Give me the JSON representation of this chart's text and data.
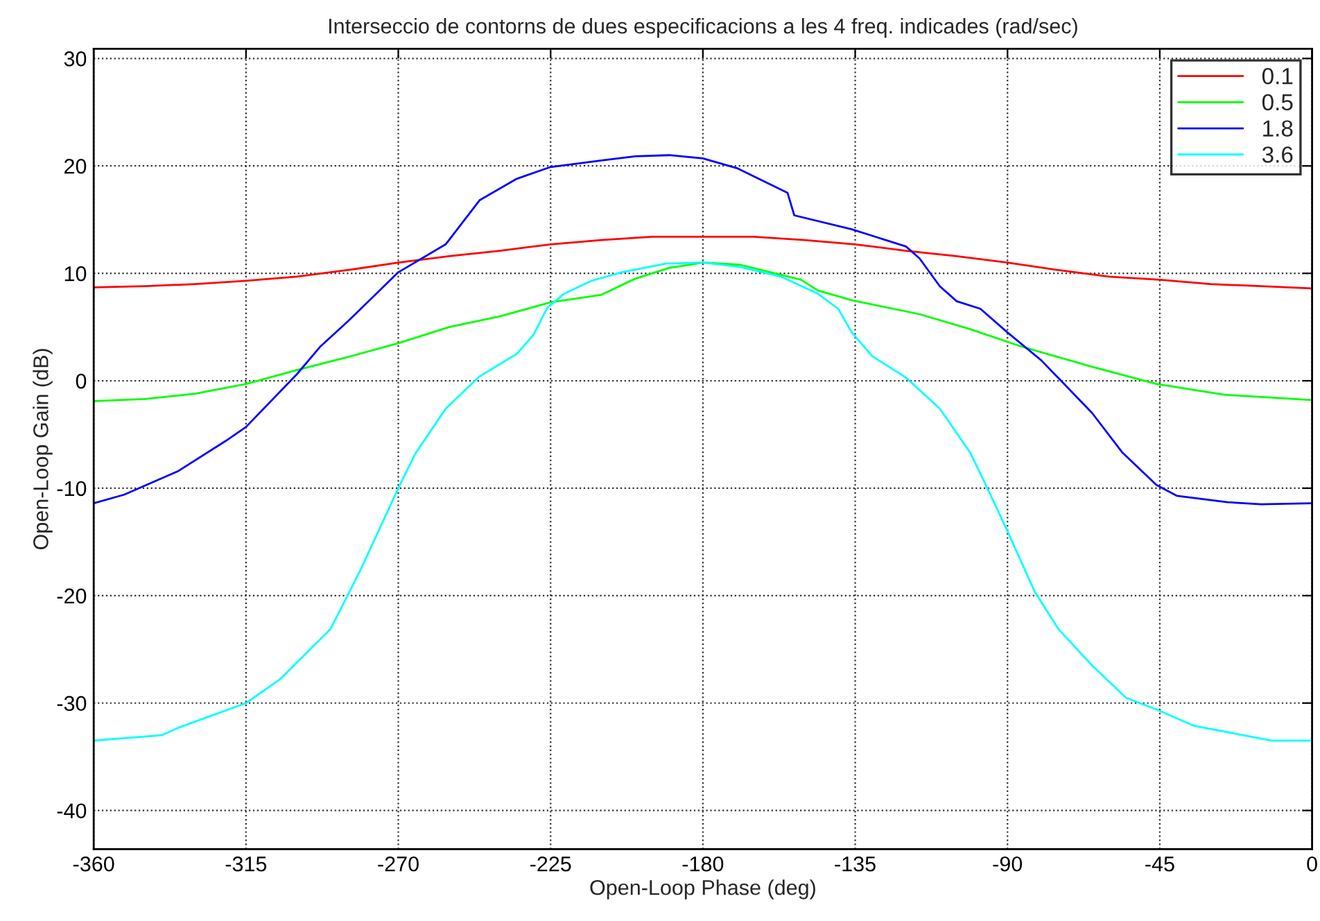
{
  "chart_data": {
    "type": "line",
    "title": "Interseccio de contorns de dues especificacions a les 4 freq. indicades (rad/sec)",
    "xlabel": "Open-Loop Phase (deg)",
    "ylabel": "Open-Loop Gain (dB)",
    "xlim": [
      -360,
      0
    ],
    "ylim": [
      -43.6,
      30.9
    ],
    "xticks": [
      -360,
      -315,
      -270,
      -225,
      -180,
      -135,
      -90,
      -45,
      0
    ],
    "yticks": [
      -40,
      -30,
      -20,
      -10,
      0,
      10,
      20,
      30
    ],
    "grid": true,
    "legend": "top right",
    "marker": "none",
    "line_style": "solid",
    "series": [
      {
        "name": "0.1",
        "color": "#ff0000",
        "x": [
          -360,
          -345,
          -330,
          -315,
          -300,
          -285,
          -270,
          -255,
          -240,
          -225,
          -210,
          -195,
          -180,
          -165,
          -150,
          -135,
          -120,
          -105,
          -90,
          -75,
          -60,
          -45,
          -30,
          -15,
          0
        ],
        "values": [
          8.7,
          8.8,
          9.0,
          9.3,
          9.7,
          10.3,
          11.0,
          11.6,
          12.1,
          12.7,
          13.1,
          13.4,
          13.4,
          13.4,
          13.1,
          12.7,
          12.1,
          11.6,
          11.0,
          10.3,
          9.7,
          9.4,
          9.0,
          8.8,
          8.6
        ]
      },
      {
        "name": "0.5",
        "color": "#00ff00",
        "x": [
          -360,
          -345,
          -330,
          -315,
          -300,
          -285,
          -270,
          -255,
          -240,
          -225,
          -210,
          -200,
          -190,
          -180,
          -169,
          -151,
          -146,
          -136,
          -116,
          -101,
          -86,
          -65,
          -46,
          -26,
          0
        ],
        "values": [
          -1.9,
          -1.7,
          -1.2,
          -0.3,
          1.0,
          2.2,
          3.5,
          5.0,
          6.0,
          7.3,
          8.0,
          9.5,
          10.5,
          11.0,
          10.8,
          9.4,
          8.4,
          7.5,
          6.2,
          4.8,
          3.2,
          1.3,
          -0.3,
          -1.3,
          -1.8
        ]
      },
      {
        "name": "1.8",
        "color": "#0000ff",
        "x": [
          -360,
          -351,
          -335,
          -321,
          -315,
          -300,
          -293,
          -285,
          -270,
          -256,
          -246,
          -235,
          -225,
          -210,
          -200,
          -190,
          -180,
          -170,
          -155,
          -153,
          -136,
          -120,
          -116,
          -110,
          -105,
          -98,
          -90,
          -80,
          -65,
          -56,
          -46,
          -40,
          -25,
          -15,
          0
        ],
        "values": [
          -11.4,
          -10.6,
          -8.4,
          -5.6,
          -4.3,
          0.6,
          3.2,
          5.5,
          10.1,
          12.7,
          16.8,
          18.8,
          19.9,
          20.5,
          20.9,
          21.0,
          20.7,
          19.8,
          17.5,
          15.4,
          14.1,
          12.5,
          11.4,
          8.8,
          7.4,
          6.7,
          4.5,
          1.9,
          -3.0,
          -6.7,
          -9.7,
          -10.7,
          -11.3,
          -11.5,
          -11.4
        ]
      },
      {
        "name": "3.6",
        "color": "#00ffff",
        "x": [
          -360,
          -340,
          -335,
          -315,
          -305,
          -290,
          -281,
          -270,
          -265,
          -256,
          -246,
          -235,
          -230,
          -226,
          -221,
          -213,
          -204,
          -191,
          -180,
          -169,
          -157,
          -146,
          -140,
          -136,
          -130,
          -120,
          -110,
          -101,
          -97,
          -90,
          -82,
          -75,
          -65,
          -55,
          -46,
          -35,
          -12,
          0
        ],
        "values": [
          -33.5,
          -33.0,
          -32.3,
          -30.0,
          -27.8,
          -23.1,
          -17.5,
          -10.0,
          -6.8,
          -2.6,
          0.4,
          2.5,
          4.3,
          6.8,
          8.1,
          9.3,
          10.1,
          10.9,
          11.0,
          10.6,
          9.7,
          8.1,
          6.7,
          4.5,
          2.3,
          0.3,
          -2.6,
          -6.7,
          -9.3,
          -14.0,
          -19.6,
          -23.1,
          -26.5,
          -29.5,
          -30.6,
          -32.1,
          -33.5,
          -33.5
        ]
      }
    ]
  }
}
